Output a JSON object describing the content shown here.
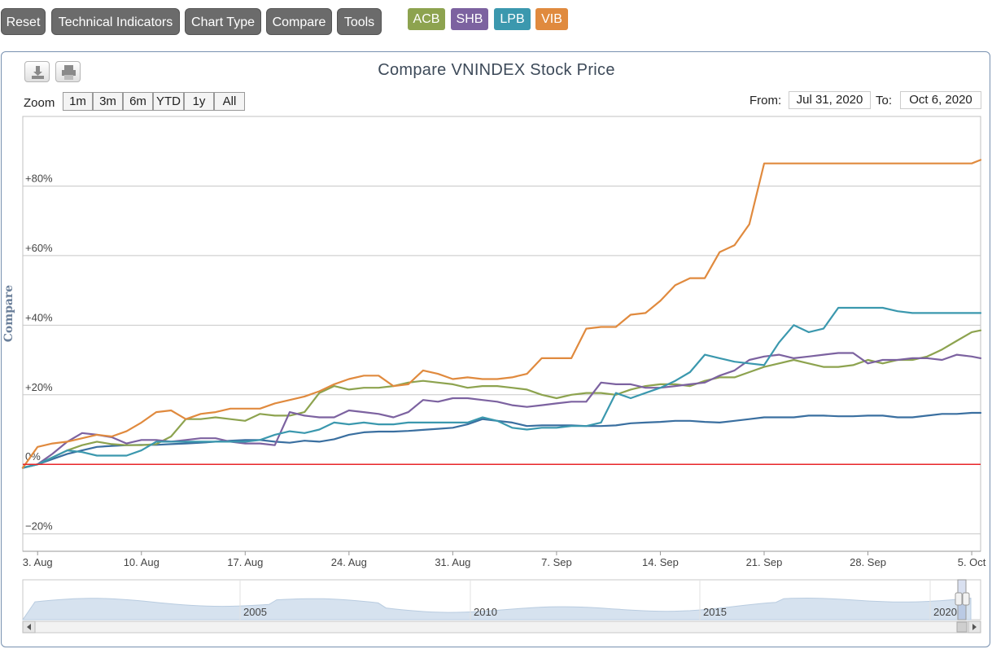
{
  "toolbar": {
    "buttons": [
      "Reset",
      "Technical Indicators",
      "Chart Type",
      "Compare",
      "Tools"
    ],
    "series_tags": [
      {
        "label": "ACB",
        "color": "#8da34f"
      },
      {
        "label": "SHB",
        "color": "#7c62a0"
      },
      {
        "label": "LPB",
        "color": "#3b98ae"
      },
      {
        "label": "VIB",
        "color": "#e08a3e"
      }
    ]
  },
  "chart_header": {
    "title": "Compare VNINDEX Stock Price",
    "zoom_label": "Zoom",
    "zoom_options": [
      "1m",
      "3m",
      "6m",
      "YTD",
      "1y",
      "All"
    ],
    "from_label": "From:",
    "from_value": "Jul 31, 2020",
    "to_label": "To:",
    "to_value": "Oct 6, 2020",
    "download_icon": "download-icon",
    "print_icon": "print-icon"
  },
  "chart_data": {
    "type": "line",
    "title": "Compare VNINDEX Stock Price",
    "ylabel": "Compare",
    "ylim": [
      -25,
      100
    ],
    "y_ticks": [
      -20,
      0,
      20,
      40,
      60,
      80
    ],
    "y_tick_labels": [
      "−20%",
      "0%",
      "+20%",
      "+40%",
      "+60%",
      "+80%"
    ],
    "x_tick_labels": [
      "3. Aug",
      "10. Aug",
      "17. Aug",
      "24. Aug",
      "31. Aug",
      "7. Sep",
      "14. Sep",
      "21. Sep",
      "28. Sep",
      "5. Oct"
    ],
    "x_ticks": [
      3,
      10,
      17,
      24,
      31,
      38,
      45,
      52,
      59,
      66
    ],
    "x_range": [
      2,
      66.6
    ],
    "reference_line": {
      "y": 0,
      "color": "#e8252a"
    },
    "grid": true,
    "series": [
      {
        "name": "VNINDEX",
        "color": "#3a6fa0",
        "x": [
          2,
          3,
          4,
          5,
          6,
          7,
          8,
          9,
          10,
          11,
          12,
          13,
          14,
          15,
          16,
          17,
          18,
          19,
          20,
          21,
          22,
          23,
          24,
          25,
          26,
          27,
          28,
          29,
          30,
          31,
          32,
          33,
          34,
          35,
          36,
          37,
          38,
          39,
          40,
          41,
          42,
          43,
          44,
          45,
          46,
          47,
          48,
          49,
          50,
          51,
          52,
          53,
          54,
          55,
          56,
          57,
          58,
          59,
          60,
          61,
          62,
          63,
          64,
          65,
          66,
          66.6
        ],
        "y": [
          -1,
          0,
          1.5,
          3,
          4,
          5,
          5.3,
          5.5,
          5.6,
          5.6,
          5.8,
          6,
          6.2,
          6.5,
          6.8,
          7,
          7,
          6.5,
          6.2,
          6.8,
          6.5,
          7.2,
          8.5,
          9.2,
          9.4,
          9.4,
          9.6,
          9.9,
          10.2,
          10.5,
          11.5,
          13,
          12.5,
          12,
          11,
          11.2,
          11.2,
          11.2,
          11,
          11,
          11.2,
          11.8,
          12,
          12.2,
          12.5,
          12.5,
          12.2,
          12,
          12.5,
          13,
          13.5,
          13.5,
          13.5,
          14,
          14,
          13.8,
          13.8,
          14,
          14,
          13.5,
          13.5,
          14,
          14.5,
          14.5,
          14.8,
          14.8
        ]
      },
      {
        "name": "ACB",
        "color": "#8da34f",
        "x": [
          2,
          3,
          4,
          5,
          6,
          7,
          8,
          9,
          10,
          11,
          12,
          13,
          14,
          15,
          16,
          17,
          18,
          19,
          20,
          21,
          22,
          23,
          24,
          25,
          26,
          27,
          28,
          29,
          30,
          31,
          32,
          33,
          34,
          35,
          36,
          37,
          38,
          39,
          40,
          41,
          42,
          43,
          44,
          45,
          46,
          47,
          48,
          49,
          50,
          51,
          52,
          53,
          54,
          55,
          56,
          57,
          58,
          59,
          60,
          61,
          62,
          63,
          64,
          65,
          66,
          66.6
        ],
        "y": [
          -1,
          0,
          2,
          4,
          5.5,
          6.5,
          5.8,
          5.5,
          5.5,
          5.8,
          8,
          13,
          13,
          13.5,
          13,
          12.5,
          14.5,
          14,
          14,
          15,
          20.5,
          22.5,
          21.5,
          22,
          22,
          22.5,
          23.5,
          24,
          23.5,
          23,
          22,
          22.5,
          22.5,
          22,
          21.5,
          20,
          19,
          20,
          20.5,
          20.5,
          20,
          21.5,
          22.5,
          23,
          23,
          22.5,
          24,
          25,
          25,
          26.5,
          28,
          29,
          30,
          29,
          28,
          28,
          28.5,
          30,
          29,
          30,
          30,
          31,
          33,
          35.5,
          38,
          38.5
        ]
      },
      {
        "name": "SHB",
        "color": "#7c62a0",
        "x": [
          2,
          3,
          4,
          5,
          6,
          7,
          8,
          9,
          10,
          11,
          12,
          13,
          14,
          15,
          16,
          17,
          18,
          19,
          20,
          21,
          22,
          23,
          24,
          25,
          26,
          27,
          28,
          29,
          30,
          31,
          32,
          33,
          34,
          35,
          36,
          37,
          38,
          39,
          40,
          41,
          42,
          43,
          44,
          45,
          46,
          47,
          48,
          49,
          50,
          51,
          52,
          53,
          54,
          55,
          56,
          57,
          58,
          59,
          60,
          61,
          62,
          63,
          64,
          65,
          66,
          66.6
        ],
        "y": [
          -1,
          0,
          3,
          6.5,
          9,
          8.5,
          7.8,
          6,
          7,
          7,
          6.5,
          7,
          7.5,
          7.5,
          6.5,
          6,
          6,
          5.5,
          15,
          14,
          13.5,
          13.5,
          15.5,
          15,
          14.5,
          13.5,
          15,
          18.5,
          18,
          19,
          19,
          18.5,
          18,
          17,
          16.5,
          17,
          17.5,
          18,
          18,
          23.5,
          23,
          23,
          22,
          22,
          22.5,
          23,
          23.5,
          25.5,
          27,
          30,
          31,
          31.5,
          30.5,
          31,
          31.5,
          32,
          32,
          29,
          30,
          30,
          30.5,
          30.5,
          30,
          31.5,
          31,
          30.5
        ]
      },
      {
        "name": "LPB",
        "color": "#3b98ae",
        "x": [
          2,
          3,
          4,
          5,
          6,
          7,
          8,
          9,
          10,
          11,
          12,
          13,
          14,
          15,
          16,
          17,
          18,
          19,
          20,
          21,
          22,
          23,
          24,
          25,
          26,
          27,
          28,
          29,
          30,
          31,
          32,
          33,
          34,
          35,
          36,
          37,
          38,
          39,
          40,
          41,
          42,
          43,
          44,
          45,
          46,
          47,
          48,
          49,
          50,
          51,
          52,
          53,
          54,
          55,
          56,
          57,
          58,
          59,
          60,
          61,
          62,
          63,
          64,
          65,
          66,
          66.6
        ],
        "y": [
          -1,
          0,
          2,
          4,
          3.5,
          2.5,
          2.5,
          2.5,
          4,
          6.5,
          6.5,
          6.5,
          6.5,
          6.5,
          6.5,
          6.5,
          7,
          8.5,
          9.5,
          9,
          10,
          12,
          11.5,
          12,
          11.5,
          11.5,
          12,
          12,
          12,
          12,
          12,
          13.5,
          12.5,
          10.5,
          10,
          10.5,
          10.5,
          11,
          11,
          12,
          20.5,
          19,
          20.5,
          22,
          24,
          26.5,
          31.5,
          30.5,
          29.5,
          29,
          28.5,
          35,
          40,
          38,
          39,
          45,
          45,
          45,
          45,
          44,
          43.5,
          43.5,
          43.5,
          43.5,
          43.5,
          43.5
        ]
      },
      {
        "name": "VIB",
        "color": "#e08a3e",
        "x": [
          2,
          3,
          4,
          5,
          6,
          7,
          8,
          9,
          10,
          11,
          12,
          13,
          14,
          15,
          16,
          17,
          18,
          19,
          20,
          21,
          22,
          23,
          24,
          25,
          26,
          27,
          28,
          29,
          30,
          31,
          32,
          33,
          34,
          35,
          36,
          37,
          38,
          39,
          40,
          41,
          42,
          43,
          44,
          45,
          46,
          47,
          48,
          49,
          50,
          51,
          52,
          53,
          54,
          55,
          56,
          57,
          58,
          59,
          60,
          61,
          62,
          63,
          64,
          65,
          66,
          66.6
        ],
        "y": [
          -1,
          5,
          6,
          6.5,
          7.5,
          8.5,
          8,
          9.5,
          12,
          15,
          15.5,
          13,
          14.5,
          15,
          16,
          16,
          16,
          17.5,
          18.5,
          19.5,
          21,
          23,
          24.5,
          25.5,
          25.5,
          22.5,
          23,
          27,
          26,
          24.5,
          25,
          24.5,
          24.5,
          25,
          26,
          30.5,
          30.5,
          30.5,
          39,
          39.5,
          39.5,
          43,
          43.5,
          47,
          51.5,
          53.5,
          53.5,
          61,
          63,
          69,
          86.5,
          86.5,
          86.5,
          86.5,
          86.5,
          86.5,
          86.5,
          86.5,
          86.5,
          86.5,
          86.5,
          86.5,
          86.5,
          86.5,
          86.5,
          87.5
        ]
      }
    ]
  },
  "navigator": {
    "year_labels": [
      "2005",
      "2010",
      "2015",
      "2020"
    ]
  }
}
